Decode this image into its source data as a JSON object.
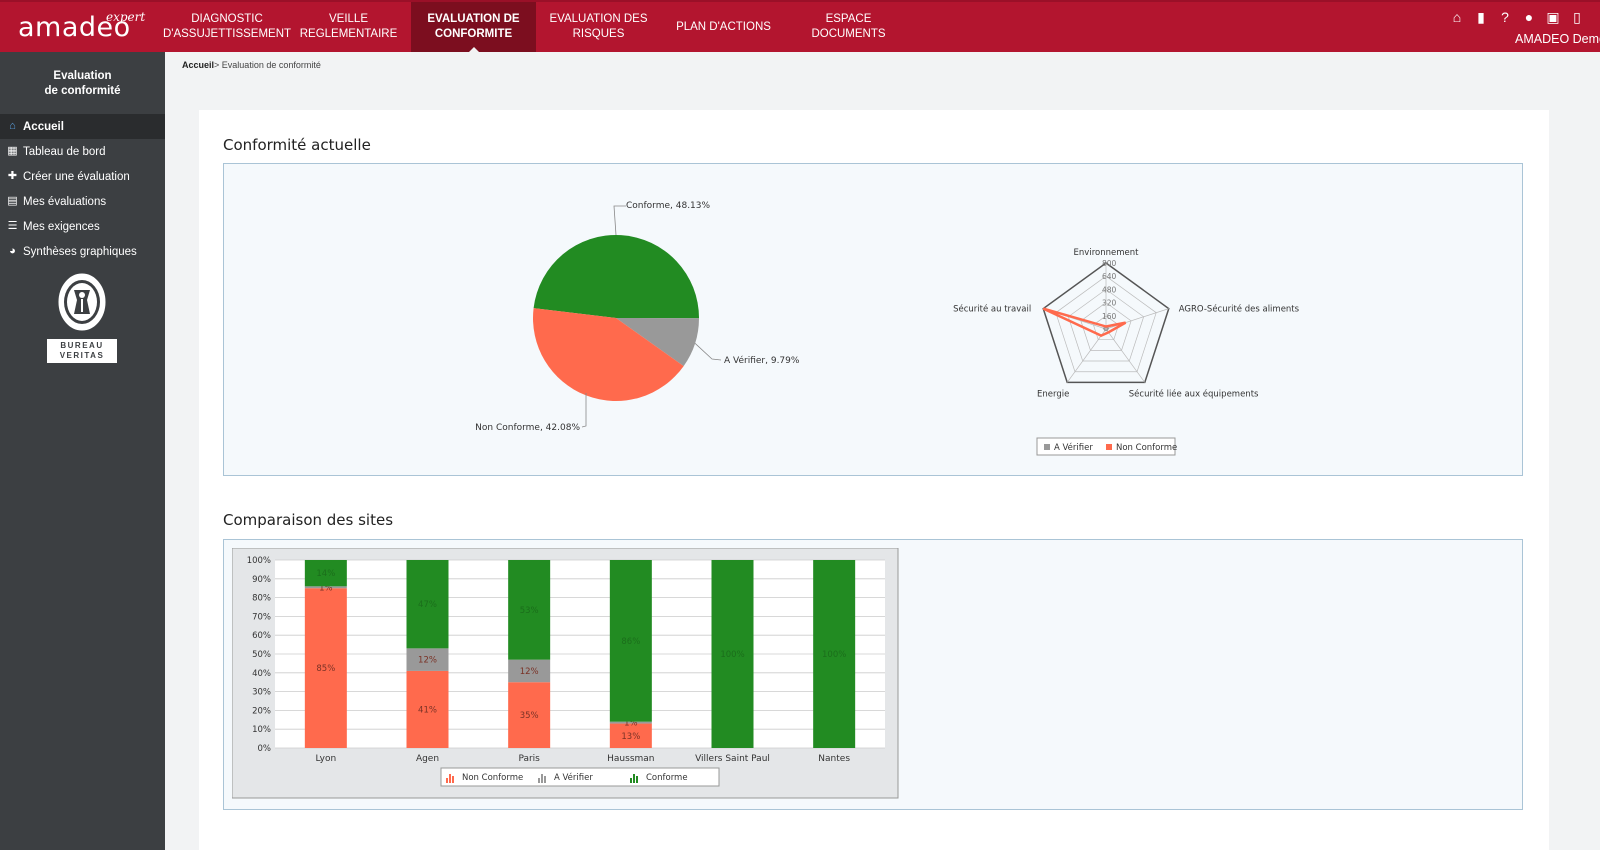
{
  "app": {
    "logo": "amadeo",
    "logo_sup": "expert",
    "user_name": "AMADEO Demo"
  },
  "nav": [
    {
      "label": "DIAGNOSTIC\nD'ASSUJETTISSEMENT",
      "active": false
    },
    {
      "label": "VEILLE REGLEMENTAIRE",
      "active": false
    },
    {
      "label": "EVALUATION DE\nCONFORMITE",
      "active": true
    },
    {
      "label": "EVALUATION DES\nRISQUES",
      "active": false
    },
    {
      "label": "PLAN D'ACTIONS",
      "active": false
    },
    {
      "label": "ESPACE DOCUMENTS",
      "active": false
    }
  ],
  "top_icons": [
    "home-icon",
    "book-icon",
    "help-icon",
    "user-icon",
    "contact-icon",
    "door-icon"
  ],
  "sidebar": {
    "title_line1": "Evaluation",
    "title_line2": "de conformité",
    "items": [
      {
        "label": "Accueil",
        "icon": "home-icon",
        "active": true
      },
      {
        "label": "Tableau de bord",
        "icon": "table-icon",
        "active": false
      },
      {
        "label": "Créer une évaluation",
        "icon": "plus-icon",
        "active": false
      },
      {
        "label": "Mes évaluations",
        "icon": "document-icon",
        "active": false
      },
      {
        "label": "Mes exigences",
        "icon": "list-icon",
        "active": false
      },
      {
        "label": "Synthèses graphiques",
        "icon": "pie-chart-icon",
        "active": false
      }
    ],
    "brand_logo_text": "BUREAU VERITAS",
    "brand_logo_bottom": "BUREAU\nVERITAS"
  },
  "breadcrumb": {
    "home": "Accueil",
    "separator": ">",
    "current": "Evaluation de conformité"
  },
  "sections": {
    "current_title": "Conformité actuelle",
    "comparison_title": "Comparaison des sites"
  },
  "colors": {
    "conforme": "#228b22",
    "non_conforme": "#ff6a4d",
    "a_verifier": "#999999",
    "brand": "#b3152f"
  },
  "chart_data": [
    {
      "type": "pie",
      "title": "",
      "slices": [
        {
          "label": "Conforme",
          "value": 48.13,
          "display": "Conforme, 48.13%"
        },
        {
          "label": "A Vérifier",
          "value": 9.79,
          "display": "A Vérifier, 9.79%"
        },
        {
          "label": "Non Conforme",
          "value": 42.08,
          "display": "Non Conforme, 42.08%"
        }
      ]
    },
    {
      "type": "radar",
      "axes": [
        "Environnement",
        "AGRO-Sécurité des aliments",
        "Sécurité liée aux équipements",
        "Energie",
        "Sécurité au travail"
      ],
      "ticks": [
        160,
        320,
        480,
        640,
        800
      ],
      "rmax": 800,
      "series": [
        {
          "name": "A Vérifier",
          "values": [
            20,
            30,
            20,
            20,
            30
          ]
        },
        {
          "name": "Non Conforme",
          "values": [
            30,
            250,
            50,
            100,
            800
          ]
        }
      ],
      "legend": [
        "A Vérifier",
        "Non Conforme"
      ]
    },
    {
      "type": "bar",
      "stacked": true,
      "categories": [
        "Lyon",
        "Agen",
        "Paris",
        "Haussman",
        "Villers Saint Paul",
        "Nantes"
      ],
      "series": [
        {
          "name": "Non Conforme",
          "values": [
            85,
            41,
            35,
            13,
            0,
            0
          ]
        },
        {
          "name": "A Vérifier",
          "values": [
            1,
            12,
            12,
            1,
            0,
            0
          ]
        },
        {
          "name": "Conforme",
          "values": [
            14,
            47,
            53,
            86,
            100,
            100
          ]
        }
      ],
      "yticks": [
        "0%",
        "10%",
        "20%",
        "30%",
        "40%",
        "50%",
        "60%",
        "70%",
        "80%",
        "90%",
        "100%"
      ],
      "ylim": [
        0,
        100
      ],
      "legend": [
        "Non Conforme",
        "A Vérifier",
        "Conforme"
      ]
    }
  ]
}
